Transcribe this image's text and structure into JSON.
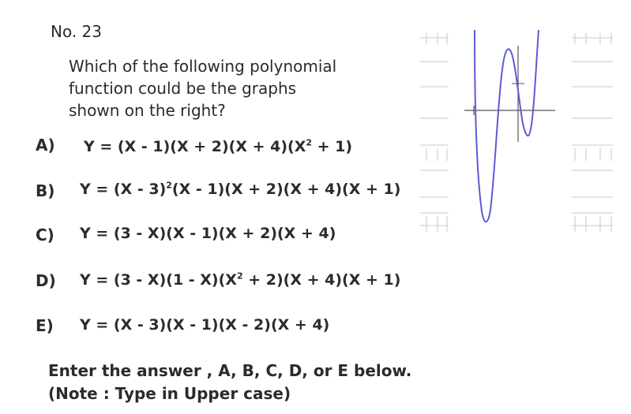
{
  "problem": {
    "number": "No. 23",
    "question_lines": [
      "Which of the following polynomial",
      "function could be the graphs",
      "shown on the right?"
    ]
  },
  "choices": [
    {
      "letter": "A)",
      "pre": "Y = (X - 1)(X + 2)(X + 4)(X",
      "sup": "2",
      "post": " + 1)"
    },
    {
      "letter": "B)",
      "pre": "Y = (X - 3)",
      "sup": "2",
      "post": "(X - 1)(X + 2)(X + 4)(X + 1)"
    },
    {
      "letter": "C)",
      "pre": "Y = (3 - X)(X - 1)(X + 2)(X + 4)",
      "sup": "",
      "post": ""
    },
    {
      "letter": "D)",
      "pre": "Y = (3 - X)(1 - X)(X",
      "sup": "2",
      "post": " + 2)(X + 4)(X + 1)"
    },
    {
      "letter": "E)",
      "pre": "Y = (X - 3)(X - 1)(X - 2)(X + 4)",
      "sup": "",
      "post": ""
    }
  ],
  "instructions": {
    "line1": "Enter the answer , A, B, C, D, or E below.",
    "line2": "(Note : Type in Upper case)"
  },
  "graph": {
    "curve_color": "#5b5bd6",
    "axis_color": "#555555",
    "grid_color": "#c8c8c8"
  }
}
